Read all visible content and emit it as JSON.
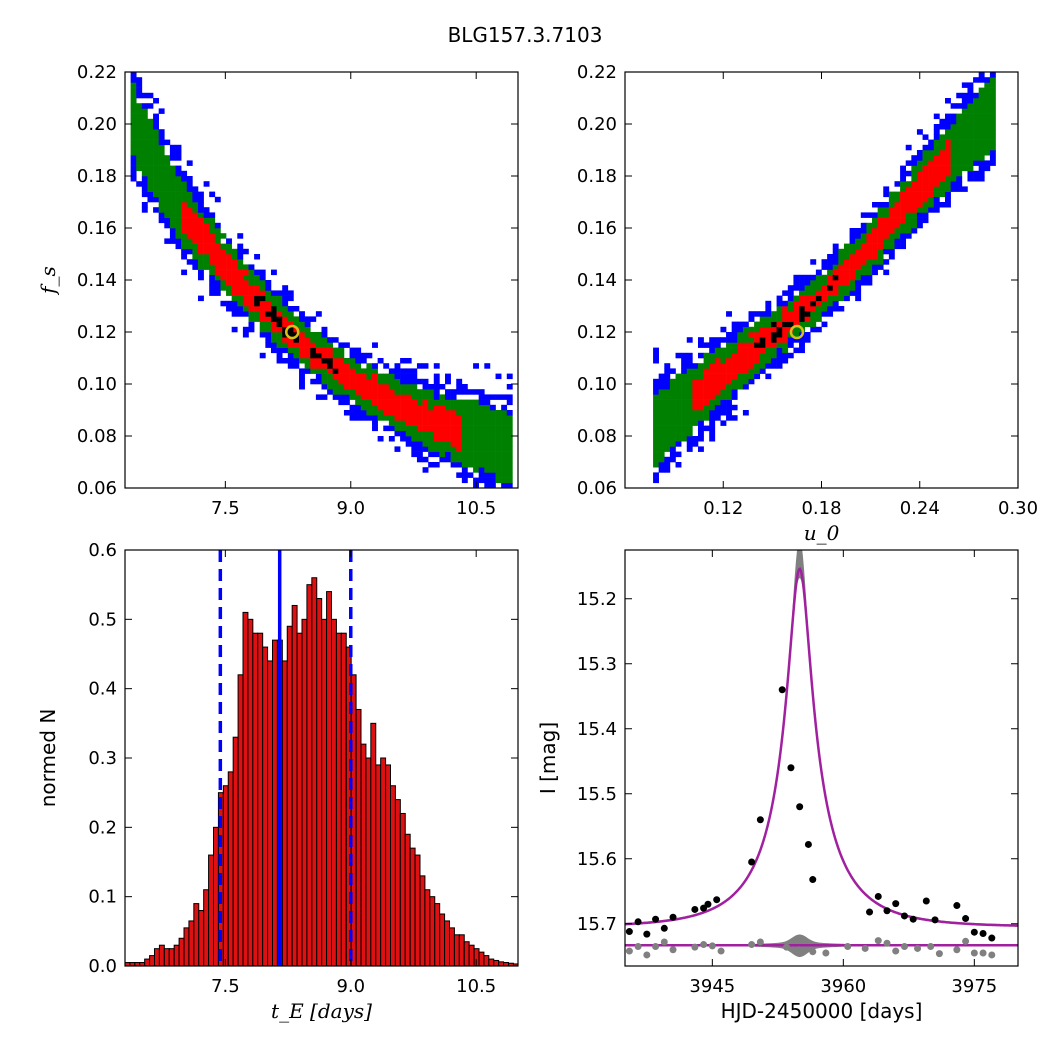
{
  "figure": {
    "title": "BLG157.3.7103"
  },
  "chart_data": [
    {
      "type": "heatmap",
      "panel": "top-left",
      "xlabel": "",
      "ylabel": "f_s",
      "xlim": [
        6.3,
        11.0
      ],
      "ylim": [
        0.06,
        0.22
      ],
      "xticks": [
        "7.5",
        "9.0",
        "10.5"
      ],
      "xtick_values": [
        7.5,
        9.0,
        10.5
      ],
      "yticks": [
        "0.06",
        "0.08",
        "0.10",
        "0.12",
        "0.14",
        "0.16",
        "0.18",
        "0.20",
        "0.22"
      ],
      "ytick_values": [
        0.06,
        0.08,
        0.1,
        0.12,
        0.14,
        0.16,
        0.18,
        0.2,
        0.22
      ],
      "levels": [
        "black",
        "red",
        "green",
        "blue"
      ],
      "colors": {
        "core": "#000000",
        "sigma1": "#ff0000",
        "sigma2": "#008000",
        "sigma3": "#0000ff",
        "marker": "#d4c21a"
      },
      "ridge": [
        [
          6.4,
          0.2
        ],
        [
          7.0,
          0.165
        ],
        [
          7.5,
          0.145
        ],
        [
          8.0,
          0.128
        ],
        [
          8.5,
          0.113
        ],
        [
          9.0,
          0.102
        ],
        [
          9.5,
          0.093
        ],
        [
          10.0,
          0.085
        ],
        [
          10.5,
          0.08
        ],
        [
          10.9,
          0.076
        ]
      ],
      "best_fit": {
        "x": 8.3,
        "y": 0.12
      }
    },
    {
      "type": "heatmap",
      "panel": "top-right",
      "xlabel": "u_0",
      "ylabel": "",
      "xlim": [
        0.06,
        0.3
      ],
      "ylim": [
        0.06,
        0.22
      ],
      "xticks": [
        "0.12",
        "0.18",
        "0.24",
        "0.30"
      ],
      "xtick_values": [
        0.12,
        0.18,
        0.24,
        0.3
      ],
      "yticks": [
        "0.06",
        "0.08",
        "0.10",
        "0.12",
        "0.14",
        "0.16",
        "0.18",
        "0.20",
        "0.22"
      ],
      "ytick_values": [
        0.06,
        0.08,
        0.1,
        0.12,
        0.14,
        0.16,
        0.18,
        0.2,
        0.22
      ],
      "ridge": [
        [
          0.078,
          0.082
        ],
        [
          0.1,
          0.094
        ],
        [
          0.12,
          0.104
        ],
        [
          0.15,
          0.119
        ],
        [
          0.18,
          0.134
        ],
        [
          0.21,
          0.153
        ],
        [
          0.24,
          0.175
        ],
        [
          0.27,
          0.195
        ],
        [
          0.285,
          0.205
        ]
      ],
      "best_fit": {
        "x": 0.165,
        "y": 0.12
      }
    },
    {
      "type": "bar",
      "panel": "bottom-left",
      "xlabel": "t_E [days]",
      "ylabel": "normed N",
      "xlim": [
        6.3,
        11.0
      ],
      "ylim": [
        0.0,
        0.6
      ],
      "xticks": [
        "7.5",
        "9.0",
        "10.5"
      ],
      "xtick_values": [
        7.5,
        9.0,
        10.5
      ],
      "yticks": [
        "0.0",
        "0.1",
        "0.2",
        "0.3",
        "0.4",
        "0.5",
        "0.6"
      ],
      "ytick_values": [
        0.0,
        0.1,
        0.2,
        0.3,
        0.4,
        0.5,
        0.6
      ],
      "bin_start": 6.3,
      "bin_width": 0.0588,
      "values": [
        0.005,
        0.005,
        0.005,
        0.005,
        0.01,
        0.015,
        0.025,
        0.03,
        0.025,
        0.025,
        0.03,
        0.04,
        0.055,
        0.065,
        0.09,
        0.08,
        0.11,
        0.16,
        0.2,
        0.25,
        0.26,
        0.28,
        0.33,
        0.42,
        0.51,
        0.5,
        0.48,
        0.48,
        0.46,
        0.44,
        0.47,
        0.47,
        0.44,
        0.49,
        0.52,
        0.48,
        0.5,
        0.55,
        0.56,
        0.53,
        0.5,
        0.54,
        0.5,
        0.48,
        0.48,
        0.46,
        0.42,
        0.37,
        0.32,
        0.3,
        0.35,
        0.29,
        0.3,
        0.29,
        0.26,
        0.24,
        0.22,
        0.19,
        0.17,
        0.16,
        0.13,
        0.11,
        0.1,
        0.09,
        0.075,
        0.065,
        0.055,
        0.045,
        0.045,
        0.035,
        0.03,
        0.025,
        0.02,
        0.015,
        0.01,
        0.008,
        0.006,
        0.005,
        0.004,
        0.003
      ],
      "vlines": [
        {
          "x": 7.44,
          "style": "dashed",
          "color": "#0000ff"
        },
        {
          "x": 8.15,
          "style": "solid",
          "color": "#0000ff"
        },
        {
          "x": 9.0,
          "style": "dashed",
          "color": "#0000ff"
        }
      ],
      "bar_color": "#dd1111"
    },
    {
      "type": "line",
      "panel": "bottom-right",
      "xlabel": "HJD-2450000 [days]",
      "ylabel": "I [mag]",
      "xlim": [
        3935,
        3980
      ],
      "ylim": [
        15.765,
        15.125
      ],
      "y_inverted": true,
      "xticks": [
        "3945",
        "3960",
        "3975"
      ],
      "xtick_values": [
        3945,
        3960,
        3975
      ],
      "yticks": [
        "15.2",
        "15.3",
        "15.4",
        "15.5",
        "15.6",
        "15.7"
      ],
      "ytick_values": [
        15.2,
        15.3,
        15.4,
        15.5,
        15.6,
        15.7
      ],
      "model": {
        "t0": 3955.0,
        "tE": 8.2,
        "u0": 0.155,
        "fs": 0.12,
        "baseline": 15.705,
        "color": "#a020a0"
      },
      "residual_baseline": 15.733,
      "band_color": "#808080",
      "points_black": [
        [
          3935.5,
          15.712
        ],
        [
          3936.5,
          15.697
        ],
        [
          3937.5,
          15.716
        ],
        [
          3938.5,
          15.693
        ],
        [
          3939.5,
          15.707
        ],
        [
          3940.5,
          15.69
        ],
        [
          3943.0,
          15.678
        ],
        [
          3944.0,
          15.676
        ],
        [
          3944.5,
          15.67
        ],
        [
          3945.5,
          15.663
        ],
        [
          3949.5,
          15.605
        ],
        [
          3950.5,
          15.54
        ],
        [
          3953.0,
          15.34
        ],
        [
          3954.0,
          15.46
        ],
        [
          3955.0,
          15.52
        ],
        [
          3956.0,
          15.578
        ],
        [
          3956.5,
          15.632
        ],
        [
          3963.0,
          15.682
        ],
        [
          3964.0,
          15.658
        ],
        [
          3965.0,
          15.68
        ],
        [
          3966.0,
          15.669
        ],
        [
          3967.0,
          15.688
        ],
        [
          3968.0,
          15.693
        ],
        [
          3969.5,
          15.665
        ],
        [
          3970.5,
          15.694
        ],
        [
          3973.0,
          15.672
        ],
        [
          3974.0,
          15.692
        ],
        [
          3975.0,
          15.713
        ],
        [
          3976.0,
          15.715
        ],
        [
          3977.0,
          15.722
        ]
      ],
      "points_gray": [
        [
          3935.5,
          15.742
        ],
        [
          3936.5,
          15.735
        ],
        [
          3937.5,
          15.748
        ],
        [
          3938.5,
          15.735
        ],
        [
          3939.5,
          15.728
        ],
        [
          3940.5,
          15.74
        ],
        [
          3943.0,
          15.736
        ],
        [
          3944.0,
          15.732
        ],
        [
          3945.0,
          15.734
        ],
        [
          3946.0,
          15.742
        ],
        [
          3949.5,
          15.732
        ],
        [
          3950.5,
          15.728
        ],
        [
          3953.5,
          15.736
        ],
        [
          3955.0,
          15.74
        ],
        [
          3956.5,
          15.743
        ],
        [
          3958.0,
          15.745
        ],
        [
          3960.5,
          15.735
        ],
        [
          3962.5,
          15.738
        ],
        [
          3964.0,
          15.726
        ],
        [
          3965.0,
          15.73
        ],
        [
          3966.0,
          15.742
        ],
        [
          3967.0,
          15.735
        ],
        [
          3968.5,
          15.738
        ],
        [
          3970.0,
          15.735
        ],
        [
          3971.0,
          15.746
        ],
        [
          3973.0,
          15.74
        ],
        [
          3974.0,
          15.727
        ],
        [
          3975.0,
          15.745
        ],
        [
          3976.0,
          15.745
        ],
        [
          3977.0,
          15.748
        ]
      ]
    }
  ]
}
